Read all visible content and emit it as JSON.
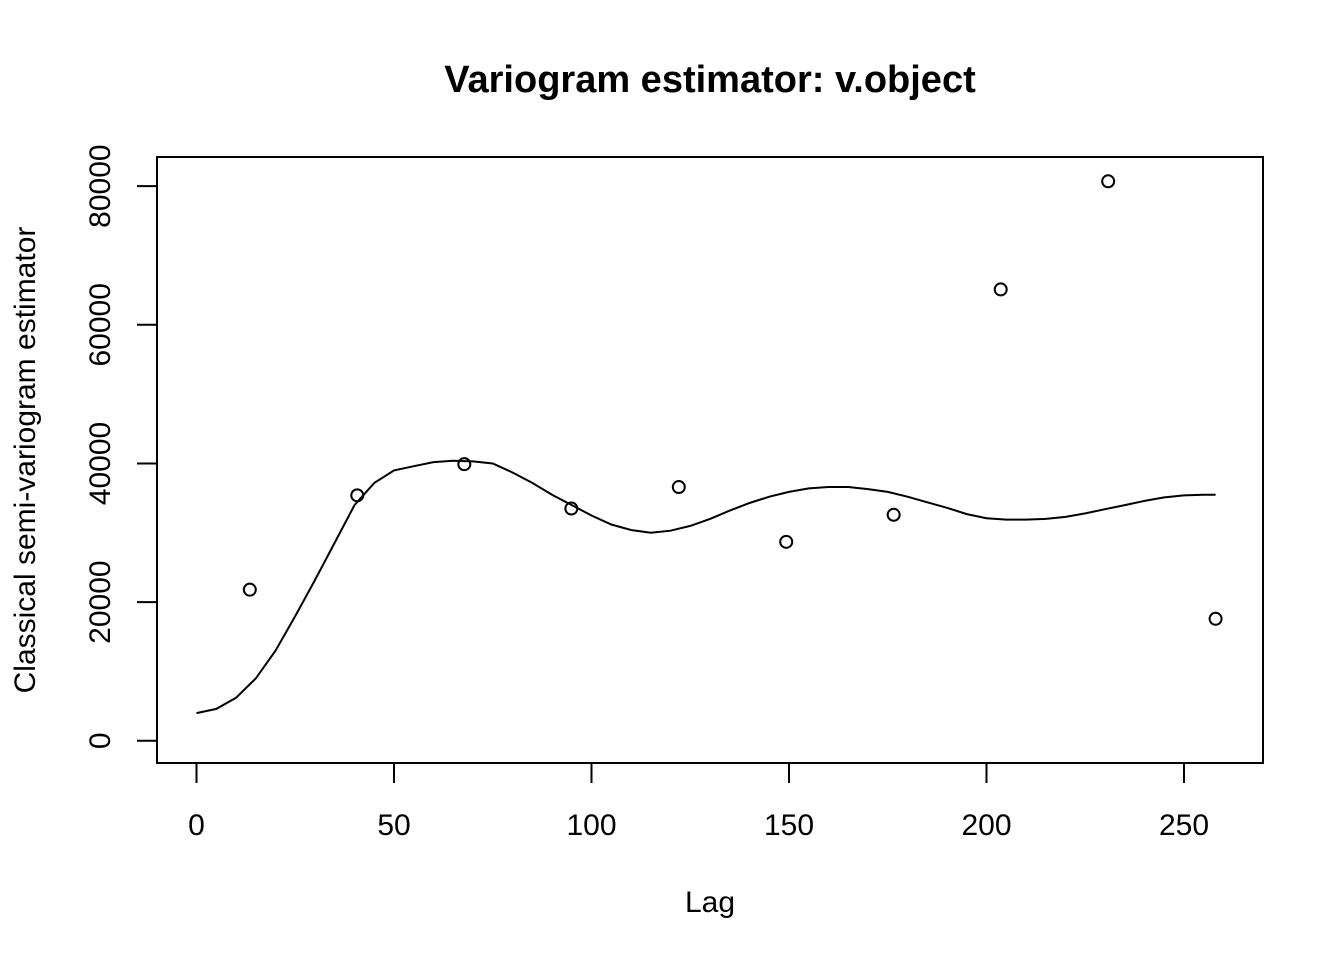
{
  "chart_data": {
    "type": "scatter",
    "title": "Variogram estimator: v.object",
    "xlabel": "Lag",
    "ylabel": "Classical semi-variogram estimator",
    "xlim": [
      -10,
      270
    ],
    "ylim": [
      -3200,
      84200
    ],
    "x_ticks": [
      0,
      50,
      100,
      150,
      200,
      250
    ],
    "x_tick_labels": [
      "0",
      "50",
      "100",
      "150",
      "200",
      "250"
    ],
    "y_ticks": [
      0,
      20000,
      40000,
      60000,
      80000
    ],
    "y_tick_labels": [
      "0",
      "20000",
      "40000",
      "60000",
      "80000"
    ],
    "grid": false,
    "series": [
      {
        "name": "estimator",
        "kind": "points",
        "x": [
          13.5,
          40.7,
          67.8,
          94.9,
          122.1,
          149.3,
          176.5,
          203.6,
          230.8,
          258.0
        ],
        "y": [
          21800,
          35400,
          39900,
          33500,
          36600,
          28700,
          32600,
          65100,
          80700,
          17600
        ]
      },
      {
        "name": "fitted model",
        "kind": "line",
        "x": [
          0,
          5,
          10,
          15,
          20,
          25,
          30,
          35,
          40,
          45,
          50,
          55,
          60,
          65,
          70,
          75,
          80,
          85,
          90,
          95,
          100,
          105,
          110,
          115,
          120,
          125,
          130,
          135,
          140,
          145,
          150,
          155,
          160,
          165,
          170,
          175,
          180,
          185,
          190,
          195,
          200,
          205,
          210,
          215,
          220,
          225,
          230,
          235,
          240,
          245,
          250,
          255,
          258
        ],
        "y": [
          4000,
          4600,
          6200,
          9000,
          13000,
          18000,
          23200,
          28600,
          34000,
          37200,
          39000,
          39600,
          40200,
          40400,
          40300,
          40000,
          38700,
          37200,
          35500,
          34000,
          32500,
          31200,
          30400,
          30000,
          30300,
          31000,
          32000,
          33200,
          34300,
          35200,
          35900,
          36400,
          36600,
          36600,
          36300,
          35900,
          35200,
          34400,
          33600,
          32700,
          32100,
          31900,
          31900,
          32000,
          32300,
          32800,
          33400,
          34000,
          34600,
          35100,
          35400,
          35500,
          35500
        ]
      }
    ]
  }
}
